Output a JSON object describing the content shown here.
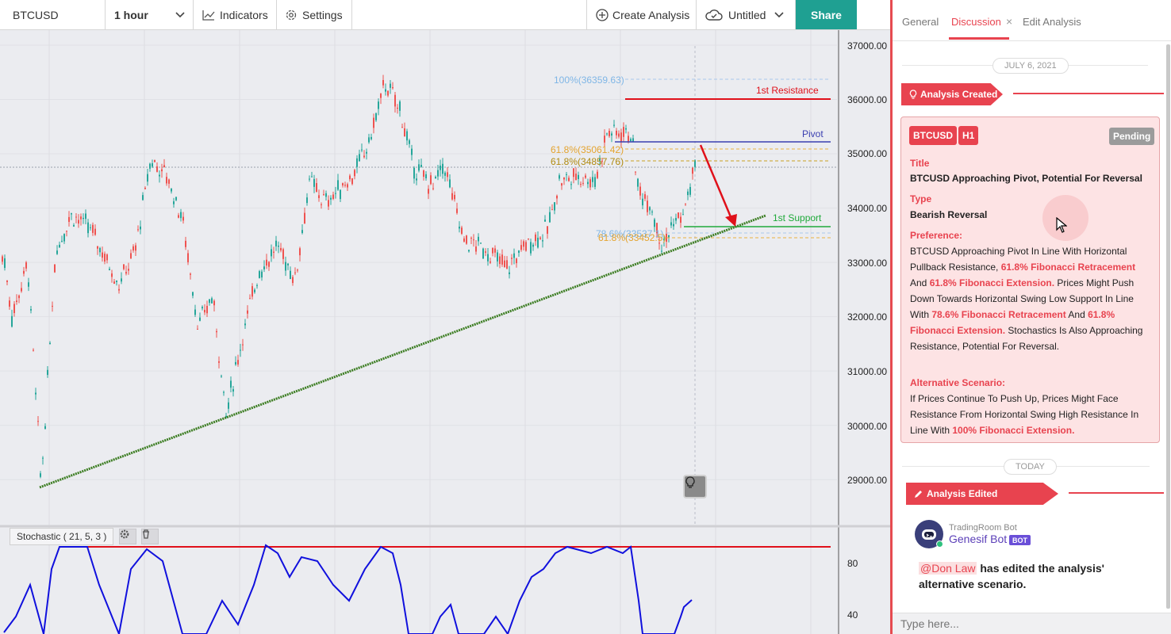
{
  "toolbar": {
    "symbol": "BTCUSD",
    "interval": "1 hour",
    "indicators_label": "Indicators",
    "settings_label": "Settings",
    "create_analysis_label": "Create Analysis",
    "layout_name": "Untitled",
    "share_label": "Share"
  },
  "chart": {
    "y_axis_labels": [
      "37000.00",
      "36000.00",
      "35000.00",
      "34000.00",
      "33000.00",
      "32000.00",
      "31000.00",
      "30000.00",
      "29000.00"
    ],
    "stoch_axis_labels": [
      "80",
      "40"
    ],
    "annotations": {
      "resistance": "1st Resistance",
      "pivot": "Pivot",
      "support": "1st Support",
      "fib100": "100%(36359.63)",
      "fib618a": "61.8%(35061.42)",
      "fib618b": "61.8%(34857.76)",
      "fib786": "78.6%(33537.1)",
      "fib618c": "61.8%(33452.5)"
    },
    "stochastic_label": "Stochastic ( 21, 5, 3 )",
    "colors": {
      "up": "#26a69a",
      "down": "#ef5350",
      "trendline": "#3c7d22",
      "resistance": "#e0101a",
      "pivot": "#3a3fb0",
      "support": "#1faa3a",
      "stoch": "#1010dd"
    }
  },
  "panel": {
    "tabs": [
      "General",
      "Discussion",
      "Edit Analysis"
    ],
    "date1": "JULY 6, 2021",
    "created_ribbon": "Analysis Created",
    "card": {
      "symbol": "BTCUSD",
      "timeframe": "H1",
      "status": "Pending",
      "title_label": "Title",
      "title": "BTCUSD Approaching Pivot, Potential For Reversal",
      "type_label": "Type",
      "type": "Bearish Reversal",
      "preference_label": "Preference:",
      "pref_1": "BTCUSD Approaching Pivot In Line With Horizontal Pullback Resistance, ",
      "pref_2": "61.8% Fibonacci Retracement",
      "pref_3": " And ",
      "pref_4": "61.8% Fibonacci Extension.",
      "pref_5": " Prices Might Push Down Towards Horizontal Swing Low Support In Line With ",
      "pref_6": "78.6% Fibonacci Retracement",
      "pref_7": " And ",
      "pref_8": "61.8% Fibonacci Extension.",
      "pref_9": " Stochastics Is Also Approaching Resistance, Potential For Reversal.",
      "alt_label": "Alternative Scenario:",
      "alt_1": "If Prices Continue To Push Up, Prices Might Face Resistance From Horizontal Swing High Resistance In Line With ",
      "alt_2": "100% Fibonacci Extension."
    },
    "date2": "TODAY",
    "edited_ribbon": "Analysis Edited",
    "bot_org": "TradingRoom Bot",
    "bot_name": "Genesif Bot",
    "bot_badge": "BOT",
    "mention": "@Don Law",
    "message": " has edited the analysis' alternative scenario.",
    "input_placeholder": "Type here..."
  }
}
